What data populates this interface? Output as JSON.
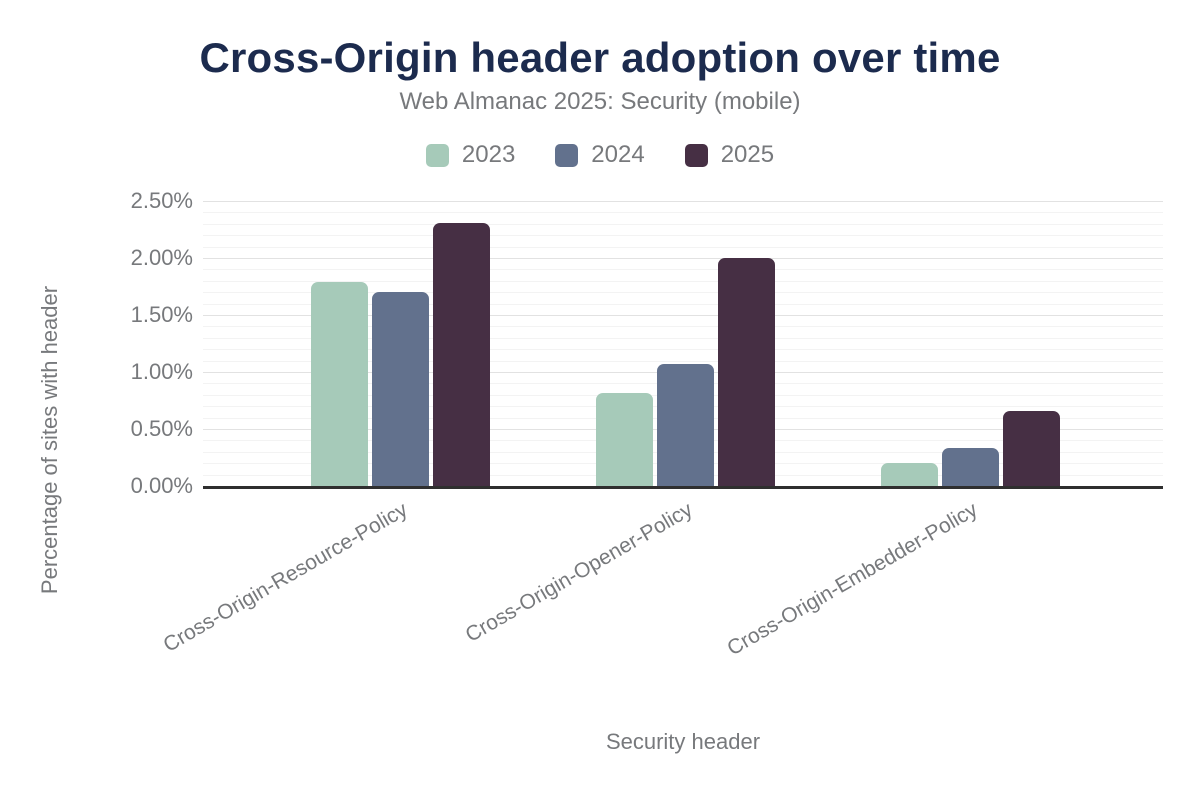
{
  "header": {
    "title": "Cross-Origin header adoption over time",
    "subtitle": "Web Almanac 2025: Security (mobile)"
  },
  "colors": {
    "title": "#1c2b4e",
    "muted_text": "#77797c",
    "axis_line": "#2f2f2f",
    "grid_major": "#e2e2e2",
    "grid_minor": "#f3f3f3",
    "background": "#ffffff",
    "series_2023": "#a6cab9",
    "series_2024": "#62718d",
    "series_2025": "#462f44"
  },
  "chart_data": {
    "type": "bar",
    "title": "Cross-Origin header adoption over time",
    "subtitle": "Web Almanac 2025: Security (mobile)",
    "categories": [
      "Cross-Origin-Resource-Policy",
      "Cross-Origin-Opener-Policy",
      "Cross-Origin-Embedder-Policy"
    ],
    "series": [
      {
        "name": "2023",
        "color": "#a6cab9",
        "values": [
          1.79,
          0.82,
          0.2
        ]
      },
      {
        "name": "2024",
        "color": "#62718d",
        "values": [
          1.7,
          1.07,
          0.33
        ]
      },
      {
        "name": "2025",
        "color": "#462f44",
        "values": [
          2.31,
          2.0,
          0.66
        ]
      }
    ],
    "xlabel": "Security header",
    "ylabel": "Percentage of sites with header",
    "ylim": [
      0,
      2.5
    ],
    "yticks": [
      {
        "value": 0.0,
        "label": "0.00%"
      },
      {
        "value": 0.5,
        "label": "0.50%"
      },
      {
        "value": 1.0,
        "label": "1.00%"
      },
      {
        "value": 1.5,
        "label": "1.50%"
      },
      {
        "value": 2.0,
        "label": "2.00%"
      },
      {
        "value": 2.5,
        "label": "2.50%"
      }
    ],
    "grid": {
      "orientation": "horizontal",
      "minor_step": 0.1,
      "major_step": 0.5
    },
    "legend_position": "top",
    "value_unit": "%"
  }
}
